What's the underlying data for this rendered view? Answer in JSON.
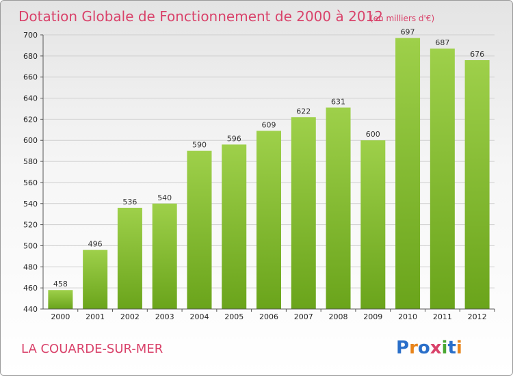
{
  "chart_data": {
    "type": "bar",
    "title": "Dotation Globale de Fonctionnement de 2000 à 2012",
    "unit": "(en milliers d'€)",
    "categories": [
      "2000",
      "2001",
      "2002",
      "2003",
      "2004",
      "2005",
      "2006",
      "2007",
      "2008",
      "2009",
      "2010",
      "2011",
      "2012"
    ],
    "values": [
      458,
      496,
      536,
      540,
      590,
      596,
      609,
      622,
      631,
      600,
      697,
      687,
      676
    ],
    "ylim": [
      440,
      700
    ],
    "yticks": [
      440,
      460,
      480,
      500,
      520,
      540,
      560,
      580,
      600,
      620,
      640,
      660,
      680,
      700
    ],
    "grid": true,
    "colors": {
      "bar_top": "#9ed04a",
      "bar_bottom": "#6aa41b",
      "title": "#d9426a"
    }
  },
  "footer": {
    "commune": "LA COUARDE-SUR-MER",
    "logo_letters": [
      "P",
      "r",
      "o",
      "x",
      "i",
      "t",
      "i"
    ],
    "logo_colors": [
      "#2a6fc9",
      "#e8841a",
      "#2a6fc9",
      "#d9426a",
      "#4aa832",
      "#2a6fc9",
      "#e8841a"
    ]
  }
}
